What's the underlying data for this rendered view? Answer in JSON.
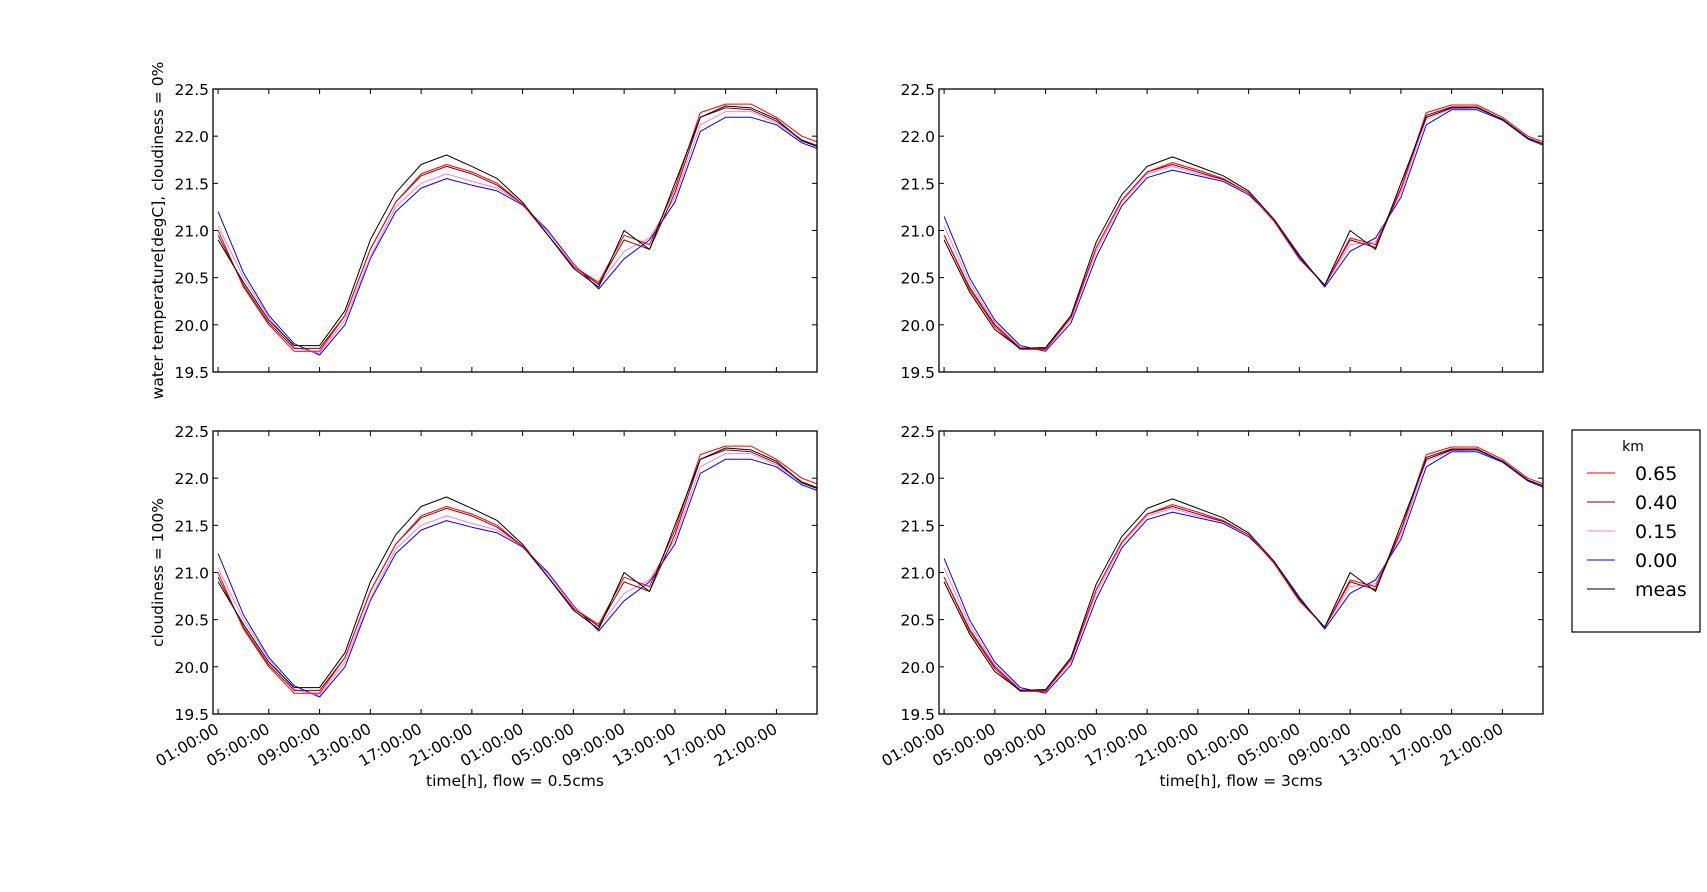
{
  "chart_data": [
    {
      "type": "line",
      "panel": "top-left",
      "title": "",
      "xlabel": "",
      "ylabel": "water temperature[degC], cloudiness = 0%",
      "ylim": [
        19.5,
        22.5
      ],
      "yticks": [
        "19.5",
        "20.0",
        "20.5",
        "21.0",
        "21.5",
        "22.0",
        "22.5"
      ],
      "xticklabels": [],
      "grid": false
    },
    {
      "type": "line",
      "panel": "top-right",
      "title": "",
      "xlabel": "",
      "ylabel": "",
      "ylim": [
        19.5,
        22.5
      ],
      "yticks": [
        "19.5",
        "20.0",
        "20.5",
        "21.0",
        "21.5",
        "22.0",
        "22.5"
      ],
      "xticklabels": [],
      "grid": false
    },
    {
      "type": "line",
      "panel": "bottom-left",
      "title": "",
      "xlabel": "time[h], flow = 0.5cms",
      "ylabel": "cloudiness = 100%",
      "ylim": [
        19.5,
        22.5
      ],
      "yticks": [
        "19.5",
        "20.0",
        "20.5",
        "21.0",
        "21.5",
        "22.0",
        "22.5"
      ],
      "xticklabels": [
        "01:00:00",
        "05:00:00",
        "09:00:00",
        "13:00:00",
        "17:00:00",
        "21:00:00",
        "01:00:00",
        "05:00:00",
        "09:00:00",
        "13:00:00",
        "17:00:00",
        "21:00:00"
      ],
      "grid": false
    },
    {
      "type": "line",
      "panel": "bottom-right",
      "title": "",
      "xlabel": "time[h], flow = 3cms",
      "ylabel": "",
      "ylim": [
        19.5,
        22.5
      ],
      "yticks": [
        "19.5",
        "20.0",
        "20.5",
        "21.0",
        "21.5",
        "22.0",
        "22.5"
      ],
      "xticklabels": [
        "01:00:00",
        "05:00:00",
        "09:00:00",
        "13:00:00",
        "17:00:00",
        "21:00:00",
        "01:00:00",
        "05:00:00",
        "09:00:00",
        "13:00:00",
        "17:00:00",
        "21:00:00"
      ],
      "grid": false
    }
  ],
  "series_data": {
    "time_hours": [
      0,
      2,
      4,
      6,
      8,
      10,
      12,
      14,
      16,
      18,
      20,
      22,
      24,
      26,
      28,
      30,
      32,
      34,
      36,
      38,
      40,
      42,
      44,
      46,
      48
    ],
    "left": {
      "meas": [
        20.9,
        20.45,
        20.05,
        19.78,
        19.78,
        20.15,
        20.9,
        21.4,
        21.7,
        21.8,
        21.68,
        21.55,
        21.3,
        20.95,
        20.6,
        20.4,
        21.0,
        20.8,
        21.5,
        22.2,
        22.32,
        22.3,
        22.18,
        21.95,
        21.85
      ],
      "km_0.65": [
        21.0,
        20.4,
        20.0,
        19.72,
        19.72,
        20.1,
        20.8,
        21.3,
        21.6,
        21.7,
        21.62,
        21.5,
        21.28,
        20.95,
        20.62,
        20.45,
        20.95,
        20.85,
        21.45,
        22.25,
        22.34,
        22.34,
        22.2,
        22.0,
        21.9
      ],
      "km_0.40": [
        20.95,
        20.42,
        20.02,
        19.75,
        19.75,
        20.1,
        20.8,
        21.3,
        21.58,
        21.68,
        21.6,
        21.48,
        21.28,
        20.95,
        20.62,
        20.43,
        20.9,
        20.8,
        21.4,
        22.2,
        22.3,
        22.28,
        22.16,
        21.96,
        21.86
      ],
      "km_0.15": [
        21.05,
        20.5,
        20.08,
        19.76,
        19.7,
        20.05,
        20.72,
        21.25,
        21.5,
        21.6,
        21.52,
        21.45,
        21.28,
        20.98,
        20.64,
        20.42,
        20.78,
        20.92,
        21.35,
        22.12,
        22.26,
        22.26,
        22.14,
        21.95,
        21.86
      ],
      "km_0.00": [
        21.2,
        20.55,
        20.1,
        19.8,
        19.68,
        20.0,
        20.7,
        21.2,
        21.45,
        21.55,
        21.48,
        21.42,
        21.27,
        21.0,
        20.65,
        20.38,
        20.7,
        20.9,
        21.3,
        22.05,
        22.2,
        22.2,
        22.12,
        21.93,
        21.83
      ]
    },
    "right": {
      "meas": [
        20.9,
        20.35,
        19.95,
        19.75,
        19.76,
        20.1,
        20.88,
        21.38,
        21.68,
        21.78,
        21.68,
        21.58,
        21.42,
        21.12,
        20.72,
        20.42,
        21.0,
        20.8,
        21.5,
        22.2,
        22.3,
        22.3,
        22.18,
        21.98,
        21.88
      ],
      "km_0.65": [
        20.95,
        20.38,
        19.98,
        19.74,
        19.74,
        20.08,
        20.82,
        21.32,
        21.62,
        21.72,
        21.64,
        21.55,
        21.4,
        21.1,
        20.7,
        20.42,
        20.92,
        20.85,
        21.45,
        22.25,
        22.33,
        22.33,
        22.2,
        22.0,
        21.9
      ],
      "km_0.40": [
        20.95,
        20.4,
        20.0,
        19.75,
        19.75,
        20.08,
        20.82,
        21.32,
        21.62,
        21.7,
        21.62,
        21.54,
        21.4,
        21.1,
        20.7,
        20.42,
        20.9,
        20.82,
        21.44,
        22.22,
        22.31,
        22.31,
        22.18,
        21.98,
        21.88
      ],
      "km_0.15": [
        21.05,
        20.45,
        20.02,
        19.76,
        19.74,
        20.06,
        20.78,
        21.3,
        21.6,
        21.68,
        21.6,
        21.54,
        21.4,
        21.12,
        20.72,
        20.42,
        20.85,
        20.88,
        21.4,
        22.18,
        22.29,
        22.3,
        22.18,
        21.98,
        21.87
      ],
      "km_0.00": [
        21.15,
        20.5,
        20.05,
        19.78,
        19.72,
        20.02,
        20.72,
        21.26,
        21.56,
        21.64,
        21.58,
        21.52,
        21.38,
        21.12,
        20.74,
        20.4,
        20.78,
        20.92,
        21.35,
        22.12,
        22.28,
        22.28,
        22.17,
        21.97,
        21.86
      ]
    }
  },
  "legend": {
    "title": "km",
    "location": "right-center",
    "entries": [
      {
        "label": "0.65",
        "color": "#ff0000"
      },
      {
        "label": "0.40",
        "color": "#8b0000"
      },
      {
        "label": "0.15",
        "color": "#ee82ee"
      },
      {
        "label": "0.00",
        "color": "#0000ff"
      },
      {
        "label": "meas",
        "color": "#000000"
      }
    ]
  }
}
